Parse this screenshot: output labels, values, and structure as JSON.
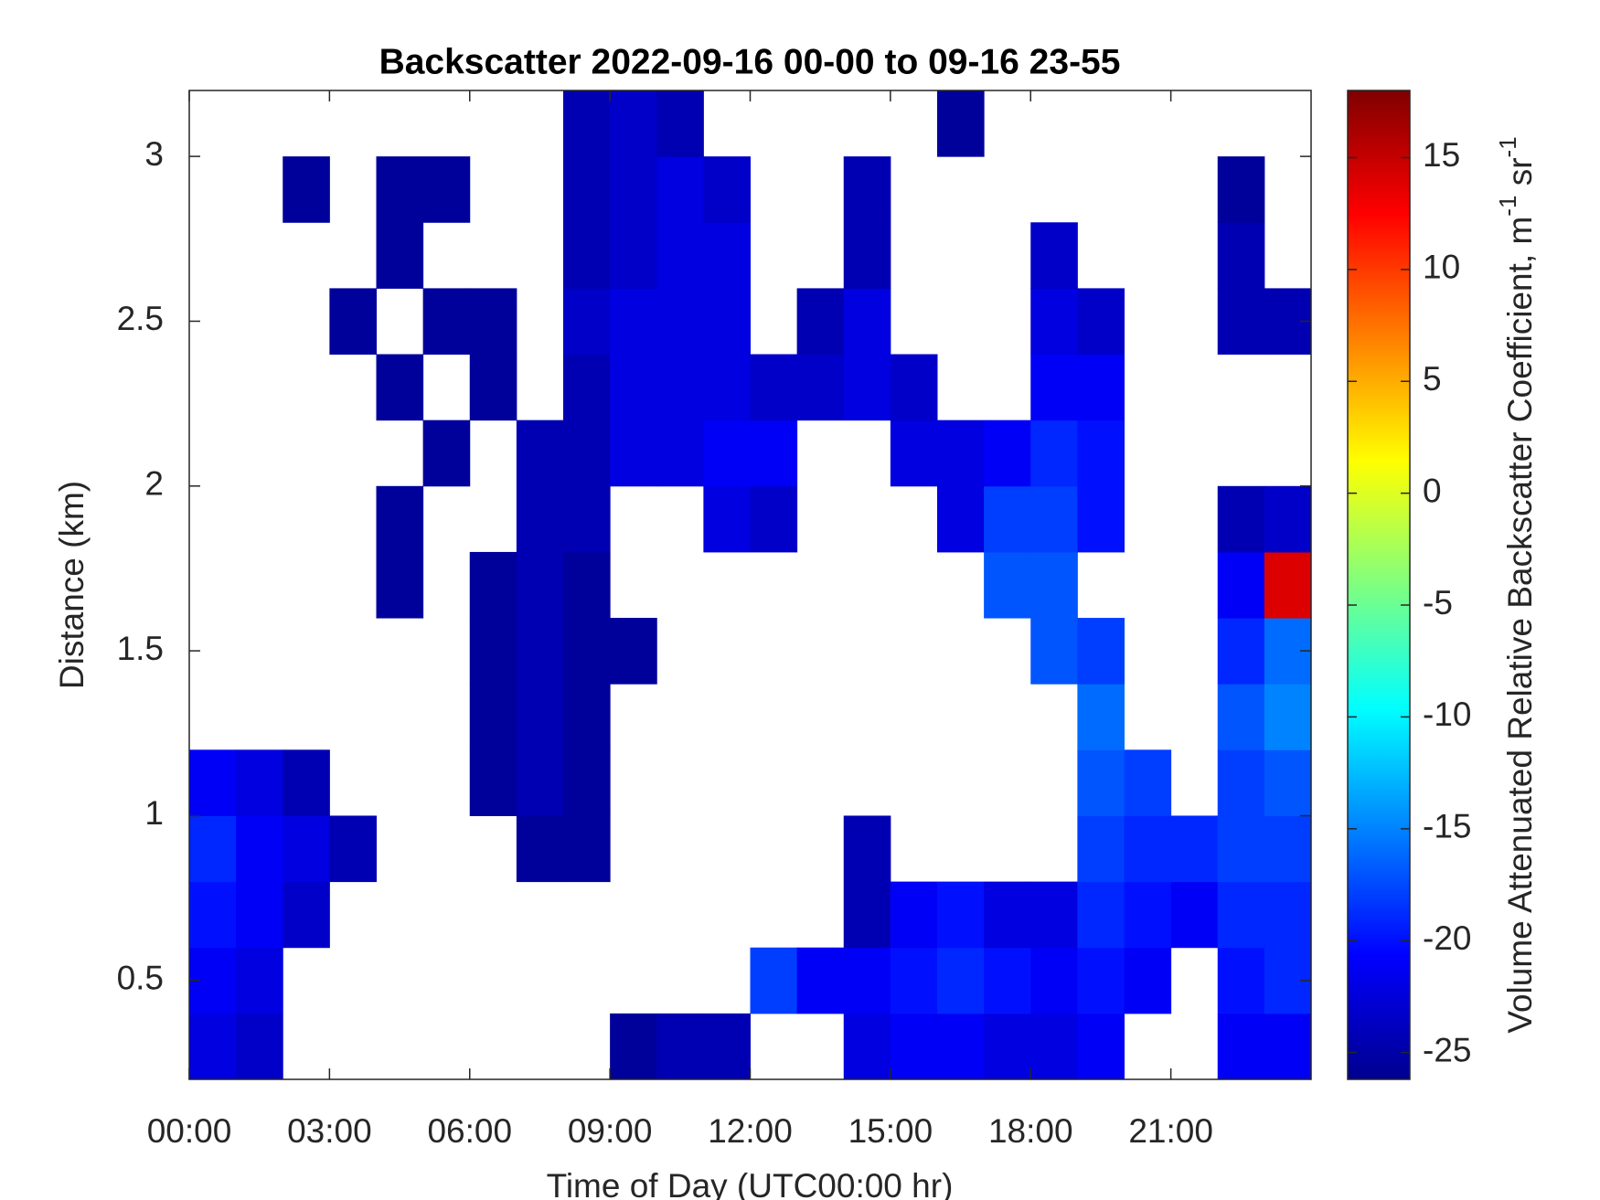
{
  "chart_data": {
    "type": "heatmap",
    "title": "Backscatter 2022-09-16 00-00 to 09-16 23-55",
    "x_label": "Time of Day (UTC00:00 hr)",
    "y_label": "Distance (km)",
    "colorbar_label": {
      "text": "Volume Attenuated Relative Backscatter Coefficient, m",
      "sup1": "-1",
      "text2": " sr",
      "sup2": "-1"
    },
    "colormap": "jet",
    "x": [
      0.5,
      1.5,
      2.5,
      3.5,
      4.5,
      5.5,
      6.5,
      7.5,
      8.5,
      9.5,
      10.5,
      11.5,
      12.5,
      13.5,
      14.5,
      15.5,
      16.5,
      17.5,
      18.5,
      19.5,
      20.5,
      21.5,
      22.5,
      23.5
    ],
    "y": [
      0.3,
      0.5,
      0.7,
      0.9,
      1.1,
      1.3,
      1.5,
      1.7,
      1.9,
      2.1,
      2.3,
      2.5,
      2.7,
      2.9,
      3.1
    ],
    "values": [
      [
        -22,
        -23,
        null,
        null,
        null,
        null,
        null,
        null,
        null,
        -25,
        -24,
        -24,
        null,
        null,
        -22,
        -21,
        -21,
        -22,
        -22,
        -21,
        null,
        null,
        -21,
        -21
      ],
      [
        -21,
        -22,
        null,
        null,
        null,
        null,
        null,
        null,
        null,
        null,
        null,
        null,
        -18,
        -21,
        -21,
        -20,
        -19,
        -20,
        -21,
        -20,
        -21,
        null,
        -20,
        -19
      ],
      [
        -20,
        -21,
        -23,
        null,
        null,
        null,
        null,
        null,
        null,
        null,
        null,
        null,
        null,
        null,
        -24,
        -21,
        -20,
        -22,
        -22,
        -19,
        -20,
        -21,
        -19,
        -19
      ],
      [
        -19,
        -21,
        -22,
        -24,
        null,
        null,
        null,
        -25,
        -25,
        null,
        null,
        null,
        null,
        null,
        -24,
        null,
        null,
        null,
        null,
        -18,
        -19,
        -19,
        -18,
        -18
      ],
      [
        -21,
        -22,
        -24,
        null,
        null,
        null,
        -25,
        -24,
        -25,
        null,
        null,
        null,
        null,
        null,
        null,
        null,
        null,
        null,
        null,
        -17,
        -18,
        null,
        -18,
        -17
      ],
      [
        null,
        null,
        null,
        null,
        null,
        null,
        -25,
        -24,
        -25,
        null,
        null,
        null,
        null,
        null,
        null,
        null,
        null,
        null,
        null,
        -16,
        null,
        null,
        -17,
        -15
      ],
      [
        null,
        null,
        null,
        null,
        null,
        null,
        -25,
        -24,
        -25,
        -25,
        null,
        null,
        null,
        null,
        null,
        null,
        null,
        null,
        -17,
        -18,
        null,
        null,
        -19,
        -16
      ],
      [
        null,
        null,
        null,
        null,
        -25,
        null,
        -25,
        -24,
        -25,
        null,
        null,
        null,
        null,
        null,
        null,
        null,
        null,
        -17,
        -17,
        null,
        null,
        null,
        -21,
        14
      ],
      [
        null,
        null,
        null,
        null,
        -25,
        null,
        null,
        -24,
        -24,
        null,
        null,
        -22,
        -23,
        null,
        null,
        null,
        -22,
        -18,
        -18,
        -20,
        null,
        null,
        -24,
        -23
      ],
      [
        null,
        null,
        null,
        null,
        null,
        -25,
        null,
        -24,
        -24,
        -22,
        -22,
        -21,
        -21,
        null,
        null,
        -22,
        -22,
        -21,
        -19,
        -20,
        null,
        null,
        null,
        null
      ],
      [
        null,
        null,
        null,
        null,
        -25,
        null,
        -25,
        null,
        -24,
        -22,
        -22,
        -22,
        -23,
        -23,
        -22,
        -23,
        null,
        null,
        -21,
        -21,
        null,
        null,
        null,
        null
      ],
      [
        null,
        null,
        null,
        -25,
        null,
        -25,
        -25,
        null,
        -23,
        -22,
        -22,
        -22,
        null,
        -24,
        -22,
        null,
        null,
        null,
        -22,
        -23,
        null,
        null,
        -24,
        -24
      ],
      [
        null,
        null,
        null,
        null,
        -25,
        null,
        null,
        null,
        -24,
        -23,
        -22,
        -22,
        null,
        null,
        -24,
        null,
        null,
        null,
        -23,
        null,
        null,
        null,
        -24,
        null
      ],
      [
        null,
        null,
        -25,
        null,
        -25,
        -25,
        null,
        null,
        -24,
        -23,
        -22,
        -23,
        null,
        null,
        -24,
        null,
        null,
        null,
        null,
        null,
        null,
        null,
        -25,
        null
      ],
      [
        null,
        null,
        null,
        null,
        null,
        null,
        null,
        null,
        -24,
        -23,
        -24,
        null,
        null,
        null,
        null,
        null,
        -25,
        null,
        null,
        null,
        null,
        null,
        null,
        null
      ]
    ],
    "xlim": [
      0,
      24
    ],
    "xticks": [
      {
        "value": 0,
        "label": "00:00"
      },
      {
        "value": 3,
        "label": "03:00"
      },
      {
        "value": 6,
        "label": "06:00"
      },
      {
        "value": 9,
        "label": "09:00"
      },
      {
        "value": 12,
        "label": "12:00"
      },
      {
        "value": 15,
        "label": "15:00"
      },
      {
        "value": 18,
        "label": "18:00"
      },
      {
        "value": 21,
        "label": "21:00"
      }
    ],
    "ylim": [
      0.2,
      3.2
    ],
    "yticks": [
      0.5,
      1,
      1.5,
      2,
      2.5,
      3
    ],
    "clim": [
      -26.2,
      18
    ],
    "cticks": [
      -25,
      -20,
      -15,
      -10,
      -5,
      0,
      5,
      10,
      15
    ]
  }
}
